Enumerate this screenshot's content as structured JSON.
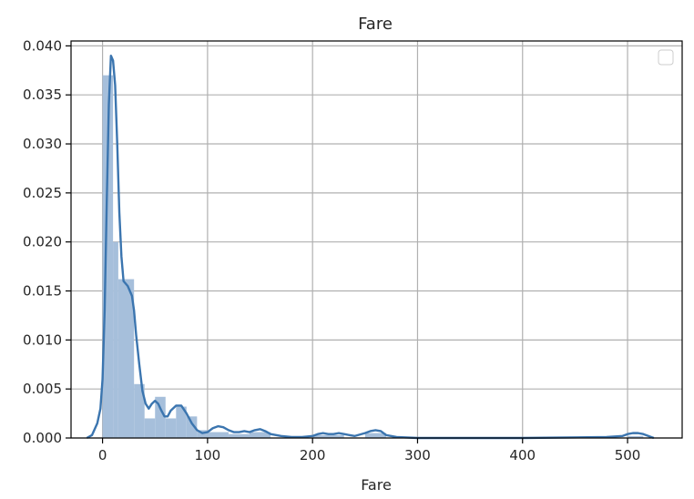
{
  "chart_data": {
    "type": "histogram-kde",
    "title": "Fare",
    "xlabel": "Fare",
    "ylabel": "",
    "xlim": [
      -30,
      552
    ],
    "ylim": [
      0,
      0.0405
    ],
    "xticks": [
      0,
      100,
      200,
      300,
      400,
      500
    ],
    "xtick_labels": [
      "0",
      "100",
      "200",
      "300",
      "400",
      "500"
    ],
    "yticks": [
      0.0,
      0.005,
      0.01,
      0.015,
      0.02,
      0.025,
      0.03,
      0.035,
      0.04
    ],
    "ytick_labels": [
      "0.000",
      "0.005",
      "0.010",
      "0.015",
      "0.020",
      "0.025",
      "0.030",
      "0.035",
      "0.040"
    ],
    "grid": true,
    "legend": "top-right (empty)",
    "colors": {
      "bar_fill": "#a6bfdb",
      "kde_line": "#3b75af",
      "grid": "#b0b0b0",
      "axes": "#000000"
    },
    "bins": [
      {
        "x0": 0,
        "x1": 10,
        "value": 0.037
      },
      {
        "x0": 10,
        "x1": 15,
        "value": 0.02
      },
      {
        "x0": 15,
        "x1": 30,
        "value": 0.0162
      },
      {
        "x0": 30,
        "x1": 40,
        "value": 0.0055
      },
      {
        "x0": 40,
        "x1": 50,
        "value": 0.002
      },
      {
        "x0": 50,
        "x1": 60,
        "value": 0.0042
      },
      {
        "x0": 60,
        "x1": 70,
        "value": 0.002
      },
      {
        "x0": 70,
        "x1": 80,
        "value": 0.0032
      },
      {
        "x0": 80,
        "x1": 90,
        "value": 0.0022
      },
      {
        "x0": 90,
        "x1": 100,
        "value": 0.0008
      },
      {
        "x0": 100,
        "x1": 120,
        "value": 0.0006
      },
      {
        "x0": 120,
        "x1": 140,
        "value": 0.0004
      },
      {
        "x0": 140,
        "x1": 160,
        "value": 0.0006
      },
      {
        "x0": 200,
        "x1": 230,
        "value": 0.0003
      },
      {
        "x0": 250,
        "x1": 270,
        "value": 0.0005
      },
      {
        "x0": 500,
        "x1": 515,
        "value": 0.0002
      }
    ],
    "kde": {
      "x": [
        -15,
        -10,
        -5,
        -2,
        0,
        2,
        4,
        6,
        8,
        10,
        12,
        14,
        16,
        18,
        20,
        24,
        28,
        30,
        32,
        35,
        38,
        41,
        44,
        47,
        50,
        53,
        56,
        59,
        62,
        65,
        70,
        75,
        80,
        85,
        90,
        95,
        100,
        105,
        110,
        115,
        120,
        125,
        130,
        135,
        140,
        145,
        150,
        155,
        160,
        170,
        180,
        190,
        200,
        205,
        210,
        215,
        220,
        225,
        230,
        235,
        240,
        250,
        255,
        260,
        265,
        270,
        280,
        300,
        400,
        480,
        495,
        500,
        505,
        510,
        515,
        520,
        525
      ],
      "y": [
        0.0,
        0.0003,
        0.0015,
        0.003,
        0.006,
        0.013,
        0.024,
        0.034,
        0.039,
        0.0385,
        0.036,
        0.03,
        0.023,
        0.0185,
        0.016,
        0.0155,
        0.0145,
        0.013,
        0.0105,
        0.0075,
        0.0048,
        0.0035,
        0.003,
        0.0035,
        0.0038,
        0.0035,
        0.0028,
        0.0022,
        0.0022,
        0.0028,
        0.0033,
        0.0033,
        0.0025,
        0.0015,
        0.0008,
        0.0005,
        0.0006,
        0.001,
        0.0012,
        0.0011,
        0.0008,
        0.0006,
        0.0006,
        0.0007,
        0.0006,
        0.0008,
        0.0009,
        0.0007,
        0.0004,
        0.0002,
        0.0001,
        0.0001,
        0.0002,
        0.0004,
        0.0005,
        0.0004,
        0.0004,
        0.0005,
        0.0004,
        0.0003,
        0.0002,
        0.0005,
        0.0007,
        0.0008,
        0.0007,
        0.0003,
        0.0001,
        0.0,
        0.0,
        0.0001,
        0.0002,
        0.0004,
        0.0005,
        0.0005,
        0.0004,
        0.0002,
        0.0
      ]
    }
  }
}
